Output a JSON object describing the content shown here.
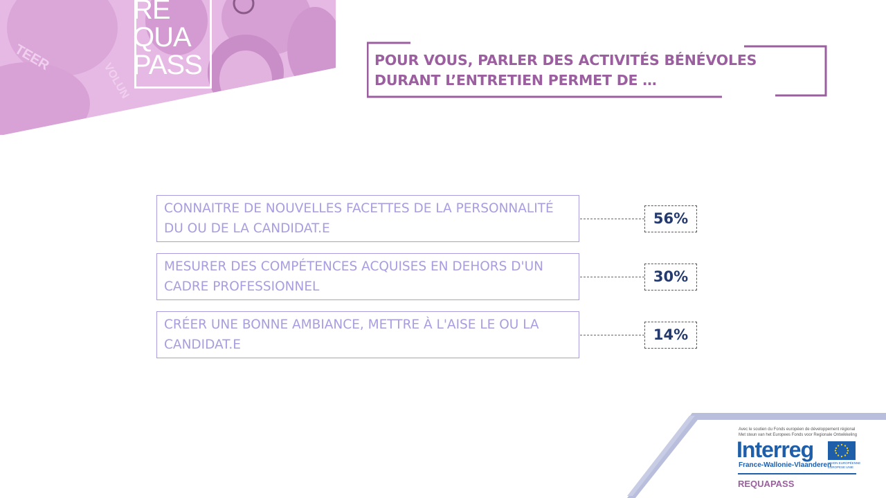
{
  "logo": {
    "line1": "RE",
    "line2": "QUA",
    "line3": "PASS"
  },
  "title": "POUR VOUS, PARLER DES ACTIVITÉS BÉNÉVOLES DURANT L’ENTRETIEN PERMET DE …",
  "answers": [
    {
      "label": "CONNAITRE DE NOUVELLES FACETTES DE LA PERSONNALITÉ DU OU DE LA CANDIDAT.E",
      "percent": "56%"
    },
    {
      "label": "MESURER DES COMPÉTENCES ACQUISES EN DEHORS D'UN CADRE PROFESSIONNEL",
      "percent": "30%"
    },
    {
      "label": "CRÉER UNE BONNE AMBIANCE, METTRE À L'AISE LE OU LA CANDIDAT.E",
      "percent": "14%"
    }
  ],
  "footer": {
    "support_line1": "Avec le soutien du Fonds européen de développement régional",
    "support_line2": "Met steun van het Europees Fonds voor Regionale Ontwikkeling",
    "program": "Interreg",
    "region": "France-Wallonie-Vlaanderen",
    "eu_line1": "UNION EUROPÉENNE",
    "eu_line2": "EUROPESE UNIE",
    "project": "REQUAPASS"
  },
  "colors": {
    "accent_purple": "#9b5fa0",
    "answer_lavender": "#a99de0",
    "percent_navy": "#243a6e",
    "banner_pink": "#e6b8e4"
  }
}
